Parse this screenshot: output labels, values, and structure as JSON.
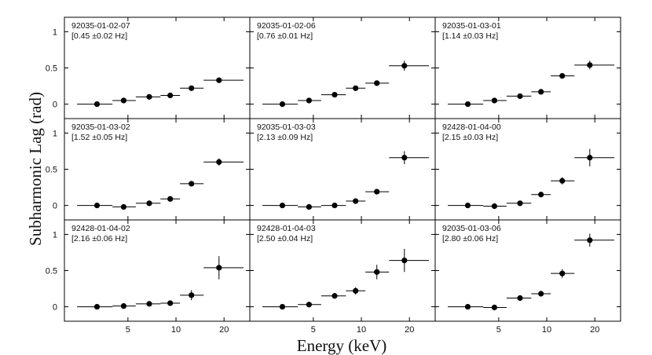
{
  "chart_data": {
    "type": "scatter",
    "xlabel": "Energy (keV)",
    "ylabel": "Subharmonic Lag (rad)",
    "xscale": "log",
    "xlim": [
      2.0,
      29.0
    ],
    "ylim": [
      -0.2,
      1.2
    ],
    "xticks": [
      5,
      10,
      20
    ],
    "xtick_labels": [
      "5",
      "10",
      "20"
    ],
    "yticks": [
      0,
      0.5,
      1
    ],
    "ytick_labels": [
      "0",
      "0.5",
      "1"
    ],
    "energy_bins": [
      {
        "x": 3.2,
        "lo": 2.4,
        "hi": 4.0
      },
      {
        "x": 4.7,
        "lo": 4.0,
        "hi": 5.6
      },
      {
        "x": 6.8,
        "lo": 5.6,
        "hi": 8.0
      },
      {
        "x": 9.2,
        "lo": 8.0,
        "hi": 10.6
      },
      {
        "x": 12.5,
        "lo": 10.6,
        "hi": 14.9
      },
      {
        "x": 18.6,
        "lo": 14.9,
        "hi": 26.5
      }
    ],
    "panels": [
      {
        "obsid": "92035-01-02-07",
        "freq": "[0.45 ±0.02 Hz]",
        "y": [
          0.0,
          0.05,
          0.1,
          0.12,
          0.22,
          0.33
        ],
        "yerr": [
          0.01,
          0.015,
          0.02,
          0.02,
          0.025,
          0.03
        ]
      },
      {
        "obsid": "92035-01-02-06",
        "freq": "[0.76 ±0.01 Hz]",
        "y": [
          0.0,
          0.05,
          0.13,
          0.22,
          0.29,
          0.53
        ],
        "yerr": [
          0.01,
          0.015,
          0.02,
          0.02,
          0.03,
          0.07
        ]
      },
      {
        "obsid": "92035-01-03-01",
        "freq": "[1.14 ±0.03 Hz]",
        "y": [
          0.0,
          0.05,
          0.11,
          0.17,
          0.39,
          0.54
        ],
        "yerr": [
          0.01,
          0.015,
          0.02,
          0.02,
          0.03,
          0.06
        ]
      },
      {
        "obsid": "92035-01-03-02",
        "freq": "[1.52 ±0.05 Hz]",
        "y": [
          0.0,
          -0.02,
          0.03,
          0.09,
          0.3,
          0.6
        ],
        "yerr": [
          0.01,
          0.015,
          0.02,
          0.02,
          0.03,
          0.05
        ]
      },
      {
        "obsid": "92035-01-03-03",
        "freq": "[2.13 ±0.09 Hz]",
        "y": [
          0.0,
          -0.02,
          0.0,
          0.06,
          0.19,
          0.66
        ],
        "yerr": [
          0.01,
          0.015,
          0.02,
          0.02,
          0.03,
          0.09
        ]
      },
      {
        "obsid": "92428-01-04-00",
        "freq": "[2.15 ±0.03 Hz]",
        "y": [
          0.0,
          -0.01,
          0.03,
          0.15,
          0.34,
          0.66
        ],
        "yerr": [
          0.01,
          0.015,
          0.02,
          0.03,
          0.05,
          0.12
        ]
      },
      {
        "obsid": "92428-01-04-02",
        "freq": "[2.16 ±0.06 Hz]",
        "y": [
          0.0,
          0.01,
          0.04,
          0.05,
          0.16,
          0.54
        ],
        "yerr": [
          0.01,
          0.015,
          0.02,
          0.03,
          0.07,
          0.16
        ]
      },
      {
        "obsid": "92428-01-04-03",
        "freq": "[2.50 ±0.04 Hz]",
        "y": [
          0.0,
          0.03,
          0.15,
          0.22,
          0.48,
          0.64
        ],
        "yerr": [
          0.01,
          0.015,
          0.04,
          0.05,
          0.1,
          0.16
        ]
      },
      {
        "obsid": "92035-01-03-06",
        "freq": "[2.80 ±0.06 Hz]",
        "y": [
          0.0,
          -0.01,
          0.12,
          0.18,
          0.46,
          0.92
        ],
        "yerr": [
          0.01,
          0.015,
          0.02,
          0.03,
          0.06,
          0.09
        ]
      }
    ]
  }
}
